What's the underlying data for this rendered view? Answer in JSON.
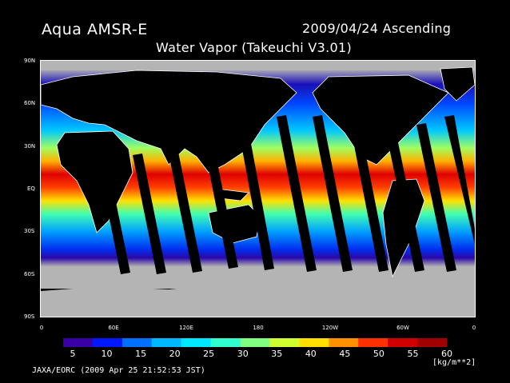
{
  "header": {
    "satellite": "Aqua AMSR-E",
    "datestamp": "2009/04/24 Ascending",
    "product": "Water Vapor (Takeuchi V3.01)"
  },
  "map": {
    "lat_labels": [
      "90N",
      "60N",
      "30N",
      "EQ",
      "30S",
      "60S",
      "90S"
    ],
    "lon_labels": [
      "0",
      "60E",
      "120E",
      "180",
      "120W",
      "60W",
      "0"
    ],
    "land_color": "#000000",
    "ice_color": "#b4b4b4",
    "coastline_color": "#ffffff",
    "swath_gap_color": "#000000"
  },
  "colorbar": {
    "ticks": [
      "5",
      "10",
      "15",
      "20",
      "25",
      "30",
      "35",
      "40",
      "45",
      "50",
      "55",
      "60"
    ],
    "unit": "[kg/m**2]",
    "colors": [
      "#3a00a8",
      "#0018ff",
      "#0070ff",
      "#00b8ff",
      "#00e8ff",
      "#30ffd0",
      "#80ff80",
      "#d0ff30",
      "#ffe000",
      "#ff9000",
      "#ff3000",
      "#d00000",
      "#a00000"
    ]
  },
  "footer": {
    "credit": "JAXA/EORC (2009 Apr 25 21:52:53 JST)"
  }
}
